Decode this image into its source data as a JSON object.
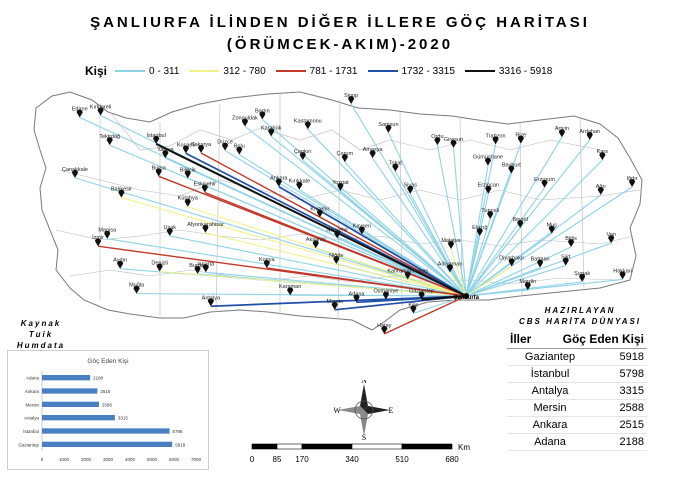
{
  "title": {
    "line1": "ŞANLIURFA İLİNDEN DİĞER İLLERE GÖÇ HARİTASI",
    "line2": "(ÖRÜMCEK-AKIM)-2020"
  },
  "legend": {
    "label": "Kişi",
    "classes": [
      {
        "range": "0 - 311",
        "color": "#8fd3e8"
      },
      {
        "range": "312 - 780",
        "color": "#f2f28a"
      },
      {
        "range": "781 - 1731",
        "color": "#c0392b"
      },
      {
        "range": "1732 - 3315",
        "color": "#1f4fa8"
      },
      {
        "range": "3316 - 5918",
        "color": "#111111"
      }
    ]
  },
  "credits": {
    "source": [
      "Kaynak",
      "Tuik",
      "Humdata"
    ],
    "author": [
      "HAZIRLAYAN",
      "CBS HARİTA DÜNYASI"
    ]
  },
  "origin": {
    "name": "Şanlıurfa",
    "lon": 38.79,
    "lat": 37.16
  },
  "cities": [
    {
      "name": "Kırklareli",
      "lon": 27.22,
      "lat": 41.73,
      "class": 1
    },
    {
      "name": "Edirne",
      "lon": 26.56,
      "lat": 41.68,
      "class": 1
    },
    {
      "name": "Tekirdağ",
      "lon": 27.51,
      "lat": 40.98,
      "class": 1
    },
    {
      "name": "İstanbul",
      "lon": 28.98,
      "lat": 41.01,
      "class": 5
    },
    {
      "name": "Kocaeli",
      "lon": 29.92,
      "lat": 40.77,
      "class": 4
    },
    {
      "name": "Sakarya",
      "lon": 30.4,
      "lat": 40.78,
      "class": 3
    },
    {
      "name": "Yalova",
      "lon": 29.27,
      "lat": 40.65,
      "class": 1
    },
    {
      "name": "Çanakkale",
      "lon": 26.41,
      "lat": 40.15,
      "class": 1
    },
    {
      "name": "Bursa",
      "lon": 29.06,
      "lat": 40.19,
      "class": 3
    },
    {
      "name": "Bilecik",
      "lon": 29.98,
      "lat": 40.14,
      "class": 1
    },
    {
      "name": "Balıkesir",
      "lon": 27.88,
      "lat": 39.65,
      "class": 2
    },
    {
      "name": "Kütahya",
      "lon": 29.98,
      "lat": 39.42,
      "class": 2
    },
    {
      "name": "Eskişehir",
      "lon": 30.52,
      "lat": 39.78,
      "class": 3
    },
    {
      "name": "Zonguldak",
      "lon": 31.79,
      "lat": 41.45,
      "class": 1
    },
    {
      "name": "Bartın",
      "lon": 32.34,
      "lat": 41.63,
      "class": 1
    },
    {
      "name": "Karabük",
      "lon": 32.62,
      "lat": 41.2,
      "class": 1
    },
    {
      "name": "Kastamonu",
      "lon": 33.78,
      "lat": 41.38,
      "class": 1
    },
    {
      "name": "Sinop",
      "lon": 35.15,
      "lat": 42.02,
      "class": 1
    },
    {
      "name": "Düzce",
      "lon": 31.16,
      "lat": 40.84,
      "class": 1
    },
    {
      "name": "Bolu",
      "lon": 31.61,
      "lat": 40.74,
      "class": 1
    },
    {
      "name": "Çankırı",
      "lon": 33.62,
      "lat": 40.6,
      "class": 1
    },
    {
      "name": "Çorum",
      "lon": 34.95,
      "lat": 40.55,
      "class": 1
    },
    {
      "name": "Samsun",
      "lon": 36.33,
      "lat": 41.29,
      "class": 1
    },
    {
      "name": "Amasya",
      "lon": 35.83,
      "lat": 40.65,
      "class": 1
    },
    {
      "name": "Tokat",
      "lon": 36.55,
      "lat": 40.31,
      "class": 1
    },
    {
      "name": "Ordu",
      "lon": 37.88,
      "lat": 40.98,
      "class": 1
    },
    {
      "name": "Giresun",
      "lon": 38.39,
      "lat": 40.91,
      "class": 1
    },
    {
      "name": "Trabzon",
      "lon": 39.72,
      "lat": 41.0,
      "class": 1
    },
    {
      "name": "Rize",
      "lon": 40.52,
      "lat": 41.02,
      "class": 1
    },
    {
      "name": "Artvin",
      "lon": 41.82,
      "lat": 41.18,
      "class": 1
    },
    {
      "name": "Ardahan",
      "lon": 42.7,
      "lat": 41.11,
      "class": 1
    },
    {
      "name": "Gümüşhane",
      "lon": 39.48,
      "lat": 40.46,
      "class": 1
    },
    {
      "name": "Bayburt",
      "lon": 40.22,
      "lat": 40.26,
      "class": 1
    },
    {
      "name": "Erzurum",
      "lon": 41.27,
      "lat": 39.9,
      "class": 1
    },
    {
      "name": "Kars",
      "lon": 43.1,
      "lat": 40.6,
      "class": 1
    },
    {
      "name": "Iğdır",
      "lon": 44.04,
      "lat": 39.92,
      "class": 1
    },
    {
      "name": "Ağrı",
      "lon": 43.05,
      "lat": 39.72,
      "class": 1
    },
    {
      "name": "Erzincan",
      "lon": 39.49,
      "lat": 39.75,
      "class": 1
    },
    {
      "name": "Tunceli",
      "lon": 39.55,
      "lat": 39.11,
      "class": 1
    },
    {
      "name": "Bingöl",
      "lon": 40.5,
      "lat": 38.88,
      "class": 1
    },
    {
      "name": "Muş",
      "lon": 41.5,
      "lat": 38.74,
      "class": 1
    },
    {
      "name": "Van",
      "lon": 43.38,
      "lat": 38.5,
      "class": 1
    },
    {
      "name": "Bitlis",
      "lon": 42.11,
      "lat": 38.4,
      "class": 1
    },
    {
      "name": "Elazığ",
      "lon": 39.22,
      "lat": 38.68,
      "class": 1
    },
    {
      "name": "Sivas",
      "lon": 37.02,
      "lat": 39.75,
      "class": 1
    },
    {
      "name": "Kırıkkale",
      "lon": 33.51,
      "lat": 39.85,
      "class": 1
    },
    {
      "name": "Ankara",
      "lon": 32.86,
      "lat": 39.93,
      "class": 4
    },
    {
      "name": "Kırşehir",
      "lon": 34.16,
      "lat": 39.15,
      "class": 1
    },
    {
      "name": "Yozgat",
      "lon": 34.81,
      "lat": 39.82,
      "class": 1
    },
    {
      "name": "Nevşehir",
      "lon": 34.71,
      "lat": 38.62,
      "class": 1
    },
    {
      "name": "Kayseri",
      "lon": 35.49,
      "lat": 38.72,
      "class": 2
    },
    {
      "name": "Malatya",
      "lon": 38.31,
      "lat": 38.35,
      "class": 2
    },
    {
      "name": "Aksaray",
      "lon": 34.03,
      "lat": 38.37,
      "class": 1
    },
    {
      "name": "Afyonkarahisar",
      "lon": 30.54,
      "lat": 38.76,
      "class": 2
    },
    {
      "name": "Uşak",
      "lon": 29.41,
      "lat": 38.68,
      "class": 1
    },
    {
      "name": "Manisa",
      "lon": 27.43,
      "lat": 38.61,
      "class": 1
    },
    {
      "name": "İzmir",
      "lon": 27.14,
      "lat": 38.42,
      "class": 3
    },
    {
      "name": "Aydın",
      "lon": 27.84,
      "lat": 37.85,
      "class": 1
    },
    {
      "name": "Denizli",
      "lon": 29.09,
      "lat": 37.78,
      "class": 2
    },
    {
      "name": "Muğla",
      "lon": 28.36,
      "lat": 37.22,
      "class": 1
    },
    {
      "name": "Burdur",
      "lon": 30.29,
      "lat": 37.72,
      "class": 1
    },
    {
      "name": "Isparta",
      "lon": 30.55,
      "lat": 37.76,
      "class": 1
    },
    {
      "name": "Antalya",
      "lon": 30.71,
      "lat": 36.9,
      "class": 4
    },
    {
      "name": "Konya",
      "lon": 32.48,
      "lat": 37.87,
      "class": 3
    },
    {
      "name": "Karaman",
      "lon": 33.22,
      "lat": 37.18,
      "class": 1
    },
    {
      "name": "Mersin",
      "lon": 34.63,
      "lat": 36.81,
      "class": 4
    },
    {
      "name": "Niğde",
      "lon": 34.68,
      "lat": 37.97,
      "class": 1
    },
    {
      "name": "Adana",
      "lon": 35.32,
      "lat": 37.0,
      "class": 4
    },
    {
      "name": "Osmaniye",
      "lon": 36.25,
      "lat": 37.07,
      "class": 1
    },
    {
      "name": "Kahramanmaraş",
      "lon": 36.94,
      "lat": 37.58,
      "class": 2
    },
    {
      "name": "Hatay",
      "lon": 36.2,
      "lat": 36.2,
      "class": 3
    },
    {
      "name": "Kilis",
      "lon": 37.12,
      "lat": 36.72,
      "class": 1
    },
    {
      "name": "Gaziantep",
      "lon": 37.38,
      "lat": 37.07,
      "class": 5
    },
    {
      "name": "Adıyaman",
      "lon": 38.28,
      "lat": 37.76,
      "class": 2
    },
    {
      "name": "Diyarbakır",
      "lon": 40.23,
      "lat": 37.91,
      "class": 2
    },
    {
      "name": "Batman",
      "lon": 41.13,
      "lat": 37.88,
      "class": 1
    },
    {
      "name": "Siirt",
      "lon": 41.94,
      "lat": 37.93,
      "class": 1
    },
    {
      "name": "Mardin",
      "lon": 40.74,
      "lat": 37.31,
      "class": 1
    },
    {
      "name": "Şırnak",
      "lon": 42.46,
      "lat": 37.52,
      "class": 1
    },
    {
      "name": "Hakkari",
      "lon": 43.74,
      "lat": 37.58,
      "class": 1
    }
  ],
  "summary_table": {
    "headers": [
      "İller",
      "Göç Eden Kişi"
    ],
    "rows": [
      [
        "Gaziantep",
        "5918"
      ],
      [
        "İstanbul",
        "5798"
      ],
      [
        "Antalya",
        "3315"
      ],
      [
        "Mersin",
        "2588"
      ],
      [
        "Ankara",
        "2515"
      ],
      [
        "Adana",
        "2188"
      ]
    ]
  },
  "chart_data": {
    "type": "bar",
    "title": "Göç Eden Kişi",
    "categories": [
      "Adana",
      "Ankara",
      "Mersin",
      "Antalya",
      "İstanbul",
      "Gaziantep"
    ],
    "values": [
      2188,
      2515,
      2588,
      3315,
      5798,
      5918
    ],
    "xlim": [
      0,
      7000
    ],
    "xticks": [
      "0",
      "1000",
      "2000",
      "3000",
      "4000",
      "5000",
      "6000",
      "7000"
    ],
    "bar_color": "#4a7fc1",
    "grid": false
  },
  "scale_bar": {
    "unit": "Km",
    "ticks": [
      "0",
      "85",
      "170",
      "340",
      "510",
      "680"
    ]
  },
  "compass": {
    "n": "N",
    "s": "S",
    "e": "E",
    "w": "W"
  }
}
